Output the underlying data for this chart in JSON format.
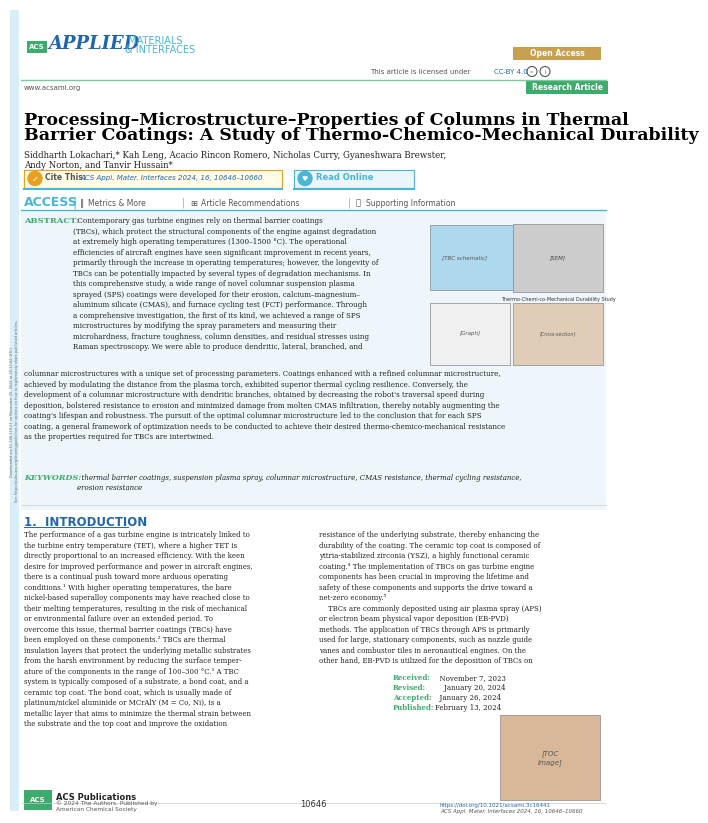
{
  "bg_color": "#ffffff",
  "title_line1": "Processing–Microstructure–Properties of Columns in Thermal",
  "title_line2": "Barrier Coatings: A Study of Thermo-Chemico-Mechanical Durability",
  "authors_line1": "Siddharth Lokachari,* Kah Leng, Acacio Rincon Romero, Nicholas Curry, Gyaneshwara Brewster,",
  "authors_line2": "Andy Norton, and Tanvir Hussain*",
  "journal_ref": "ACS Appl. Mater. Interfaces 2024, 16, 10646–10660",
  "abstract_label": "ABSTRACT:",
  "abstract_body": "  Contemporary gas turbine engines rely on thermal barrier coatings\n(TBCs), which protect the structural components of the engine against degradation\nat extremely high operating temperatures (1300–1500 °C). The operational\nefficiencies of aircraft engines have seen significant improvement in recent years,\nprimarily through the increase in operating temperatures; however, the longevity of\nTBCs can be potentially impacted by several types of degradation mechanisms. In\nthis comprehensive study, a wide range of novel columnar suspension plasma\nsprayed (SPS) coatings were developed for their erosion, calcium–magnesium–\naluminum silicate (CMAS), and furnace cycling test (FCT) performance. Through\na comprehensive investigation, the first of its kind, we achieved a range of SPS\nmicrostructures by modifying the spray parameters and measuring their\nmicrohardness, fracture toughness, column densities, and residual stresses using\nRaman spectroscopy. We were able to produce dendritic, lateral, branched, and",
  "abstract_full": "columnar microstructures with a unique set of processing parameters. Coatings enhanced with a refined columnar microstructure,\nachieved by modulating the distance from the plasma torch, exhibited superior thermal cycling resilience. Conversely, the\ndevelopment of a columnar microstructure with dendritic branches, obtained by decreasing the robot's traversal speed during\ndeposition, bolstered resistance to erosion and minimized damage from molten CMAS infiltration, thereby notably augmenting the\ncoating's lifespan and robustness. The pursuit of the optimal columnar microstructure led to the conclusion that for each SPS\ncoating, a general framework of optimization needs to be conducted to achieve their desired thermo-chemico-mechanical resistance\nas the properties required for TBCs are intertwined.",
  "keywords_label": "KEYWORDS:",
  "keywords_body": "  thermal barrier coatings, suspension plasma spray, columnar microstructure, CMAS resistance, thermal cycling resistance,\nerosion resistance",
  "intro_title": "1.  INTRODUCTION",
  "intro_left": "The performance of a gas turbine engine is intricately linked to\nthe turbine entry temperature (TET), where a higher TET is\ndirectly proportional to an increased efficiency. With the keen\ndesire for improved performance and power in aircraft engines,\nthere is a continual push toward more arduous operating\nconditions.¹ With higher operating temperatures, the bare\nnickel-based superalloy components may have reached close to\ntheir melting temperatures, resulting in the risk of mechanical\nor environmental failure over an extended period. To\novercome this issue, thermal barrier coatings (TBCs) have\nbeen employed on these components.² TBCs are thermal\ninsulation layers that protect the underlying metallic substrates\nfrom the harsh environment by reducing the surface temper-\nature of the components in the range of 100–300 °C.³ A TBC\nsystem is typically composed of a substrate, a bond coat, and a\nceramic top coat. The bond coat, which is usually made of\nplatinum/nickel aluminide or MCrAlY (M = Co, Ni), is a\nmetallic layer that aims to minimize the thermal strain between\nthe substrate and the top coat and improve the oxidation",
  "intro_right": "resistance of the underlying substrate, thereby enhancing the\ndurability of the coating. The ceramic top coat is composed of\nyttria-stabilized zirconia (YSZ), a highly functional ceramic\ncoating.⁴ The implementation of TBCs on gas turbine engine\ncomponents has been crucial in improving the lifetime and\nsafety of these components and supports the drive toward a\nnet-zero economy.⁵\n    TBCs are commonly deposited using air plasma spray (APS)\nor electron beam physical vapor deposition (EB-PVD)\nmethods. The application of TBCs through APS is primarily\nused for large, stationary components, such as nozzle guide\nvanes and combustor tiles in aeronautical engines. On the\nother hand, EB-PVD is utilized for the deposition of TBCs on",
  "received_label": "Received:",
  "received_val": "  November 7, 2023",
  "revised_label": "Revised:",
  "revised_val": "    January 20, 2024",
  "accepted_label": "Accepted:",
  "accepted_val": "  January 26, 2024",
  "published_label": "Published:",
  "published_val": "February 13, 2024",
  "footer_copy": "© 2024 The Authors. Published by\nAmerican Chemical Society",
  "page_number": "10646",
  "journal_footer": "ACS Appl. Mater. Interfaces 2024, 16, 10646–10660",
  "doi_footer": "https://doi.org/10.1021/acsami.3c16441",
  "acs_green": "#3daa6e",
  "blue_main": "#2166ac",
  "teal_access": "#4ab5d4",
  "green_line": "#7ec8a0",
  "orange_cite": "#e8a020",
  "green_ra": "#3daa6e",
  "gray_text": "#444444",
  "light_gray": "#888888",
  "abs_bg": "#eef6fb",
  "left_bar_color": "#d8eef8",
  "sidebar_text_color": "#666666"
}
